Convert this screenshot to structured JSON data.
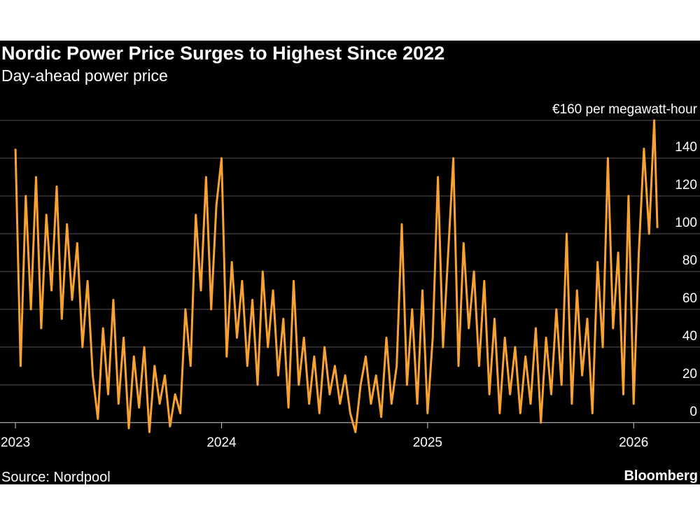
{
  "chart_data": {
    "type": "line",
    "title": "Nordic Power Price Surges to Highest Since 2022",
    "subtitle": "Day-ahead power price",
    "source": "Source: Nordpool",
    "brand": "Bloomberg",
    "color": "#f7a233",
    "grid": true,
    "xlim": [
      2022.925,
      2026.322
    ],
    "xticks": [
      2023,
      2024,
      2025,
      2026
    ],
    "ylim": [
      -6,
      160
    ],
    "yticks": [
      0,
      20,
      40,
      60,
      80,
      100,
      120,
      140,
      {
        "value": 160,
        "label": "€160 per megawatt-hour"
      }
    ],
    "x": [
      2023,
      2023.025,
      2023.05,
      2023.075,
      2023.1,
      2023.125,
      2023.15,
      2023.175,
      2023.2,
      2023.225,
      2023.25,
      2023.275,
      2023.3,
      2023.325,
      2023.35,
      2023.375,
      2023.4,
      2023.425,
      2023.45,
      2023.475,
      2023.5,
      2023.525,
      2023.55,
      2023.575,
      2023.6,
      2023.625,
      2023.65,
      2023.675,
      2023.7,
      2023.725,
      2023.75,
      2023.775,
      2023.8,
      2023.825,
      2023.85,
      2023.875,
      2023.9,
      2023.925,
      2023.95,
      2023.975,
      2024,
      2024.025,
      2024.05,
      2024.075,
      2024.1,
      2024.125,
      2024.15,
      2024.175,
      2024.2,
      2024.225,
      2024.25,
      2024.275,
      2024.3,
      2024.325,
      2024.35,
      2024.375,
      2024.4,
      2024.425,
      2024.45,
      2024.475,
      2024.5,
      2024.525,
      2024.55,
      2024.575,
      2024.6,
      2024.625,
      2024.65,
      2024.675,
      2024.7,
      2024.725,
      2024.75,
      2024.775,
      2024.8,
      2024.825,
      2024.85,
      2024.875,
      2024.9,
      2024.925,
      2024.95,
      2024.975,
      2025,
      2025.025,
      2025.05,
      2025.075,
      2025.1,
      2025.125,
      2025.15,
      2025.175,
      2025.2,
      2025.225,
      2025.25,
      2025.275,
      2025.3,
      2025.325,
      2025.35,
      2025.375,
      2025.4,
      2025.425,
      2025.45,
      2025.475,
      2025.5,
      2025.525,
      2025.55,
      2025.575,
      2025.6,
      2025.625,
      2025.65,
      2025.675,
      2025.7,
      2025.725,
      2025.75,
      2025.775,
      2025.8,
      2025.825,
      2025.85,
      2025.875,
      2025.9,
      2025.925,
      2025.95,
      2025.975,
      2026,
      2026.025,
      2026.05,
      2026.075,
      2026.1,
      2026.115
    ],
    "values": [
      145,
      30,
      120,
      60,
      130,
      50,
      110,
      70,
      125,
      55,
      105,
      65,
      95,
      40,
      75,
      25,
      2,
      50,
      15,
      65,
      10,
      45,
      -3,
      35,
      8,
      40,
      -5,
      30,
      10,
      25,
      -2,
      15,
      5,
      60,
      30,
      110,
      70,
      130,
      60,
      115,
      140,
      35,
      85,
      45,
      75,
      30,
      65,
      20,
      80,
      40,
      70,
      25,
      55,
      8,
      75,
      20,
      45,
      10,
      35,
      5,
      40,
      15,
      30,
      10,
      25,
      5,
      -5,
      20,
      35,
      10,
      25,
      3,
      45,
      10,
      30,
      105,
      20,
      60,
      10,
      70,
      5,
      45,
      130,
      40,
      90,
      140,
      30,
      95,
      50,
      80,
      30,
      75,
      15,
      55,
      5,
      45,
      15,
      40,
      5,
      35,
      10,
      50,
      0,
      45,
      15,
      60,
      20,
      100,
      10,
      70,
      25,
      55,
      5,
      85,
      40,
      140,
      50,
      90,
      15,
      120,
      10,
      90,
      145,
      100,
      160,
      103
    ]
  }
}
